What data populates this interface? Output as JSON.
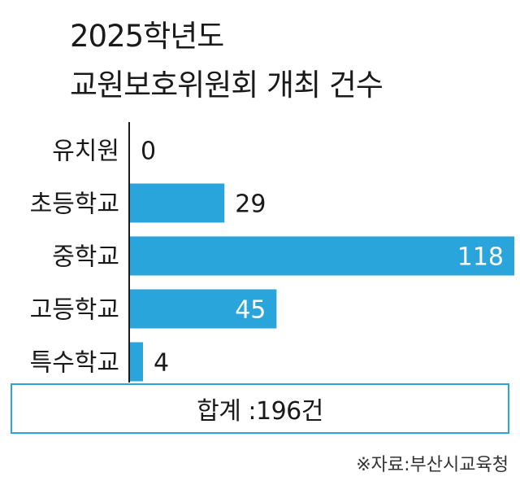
{
  "title_line1": "2025학년도",
  "title_line2": "교원보호위원회 개최 건수",
  "total_label": "합계 :196건",
  "source": "※자료:부산시교육청",
  "colors": {
    "bar": "#29a5dc",
    "axis": "#1a1a1a",
    "border": "#29a5dc"
  },
  "chart_data": {
    "type": "bar",
    "orientation": "horizontal",
    "categories": [
      "유치원",
      "초등학교",
      "중학교",
      "고등학교",
      "특수학교"
    ],
    "values": [
      0,
      29,
      118,
      45,
      4
    ],
    "xlim": [
      0,
      118
    ],
    "grid": false
  }
}
